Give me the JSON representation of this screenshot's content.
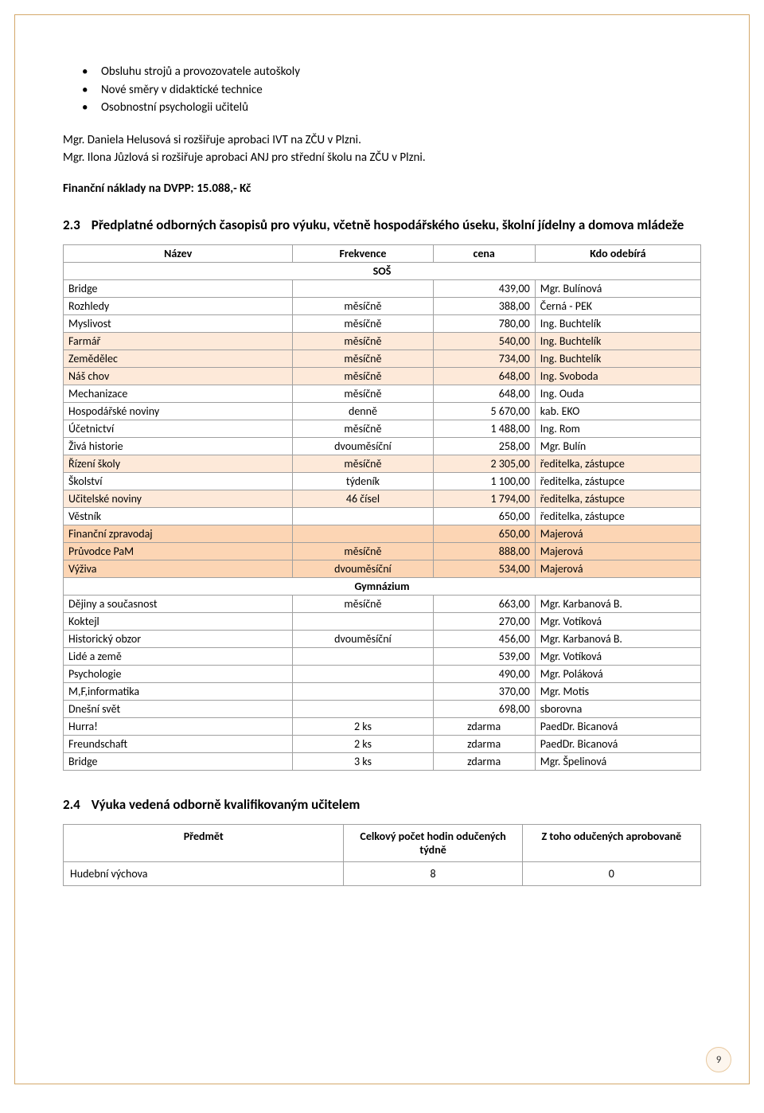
{
  "bullets": {
    "b1": "Obsluhu strojů a provozovatele autoškoly",
    "b2": "Nové směry v didaktické technice",
    "b3": "Osobnostní psychologii učitelů"
  },
  "para1": "Mgr. Daniela Helusová si rozšiřuje aprobaci IVT na ZČU v Plzni.",
  "para2": "Mgr. Ilona Jůzlová si rozšiřuje aprobaci ANJ pro střední školu na ZČU v Plzni.",
  "fin_label": "Finanční náklady na DVPP: 15.088,- Kč",
  "sec23": {
    "num": "2.3",
    "title": "Předplatné odborných časopisů pro výuku, včetně hospodářského úseku, školní jídelny a domova mládeže"
  },
  "t1_header": {
    "c1": "Název",
    "c2": "Frekvence",
    "c3": "cena",
    "c4": "Kdo odebírá"
  },
  "t1_sub1": "SOŠ",
  "t1_sub2": "Gymnázium",
  "t1_rows_sos": [
    {
      "name": "Bridge",
      "freq": "",
      "cena": "439,00",
      "kdo": "Mgr. Bulínová"
    },
    {
      "name": "Rozhledy",
      "freq": "měsíčně",
      "cena": "388,00",
      "kdo": "Černá - PEK"
    },
    {
      "name": "Myslivost",
      "freq": "měsíčně",
      "cena": "780,00",
      "kdo": "Ing. Buchtelík"
    },
    {
      "name": "Farmář",
      "freq": "měsíčně",
      "cena": "540,00",
      "kdo": "Ing. Buchtelík"
    },
    {
      "name": "Zemědělec",
      "freq": "měsíčně",
      "cena": "734,00",
      "kdo": "Ing. Buchtelík"
    },
    {
      "name": "Náš chov",
      "freq": "měsíčně",
      "cena": "648,00",
      "kdo": "Ing. Svoboda"
    },
    {
      "name": "Mechanizace",
      "freq": "měsíčně",
      "cena": "648,00",
      "kdo": "Ing. Ouda"
    },
    {
      "name": "Hospodářské noviny",
      "freq": "denně",
      "cena": "5 670,00",
      "kdo": "kab. EKO"
    },
    {
      "name": "Účetnictví",
      "freq": "měsíčně",
      "cena": "1 488,00",
      "kdo": "Ing. Rom"
    },
    {
      "name": "Živá historie",
      "freq": "dvouměsíční",
      "cena": "258,00",
      "kdo": "Mgr. Bulín"
    },
    {
      "name": "Řízení školy",
      "freq": "měsíčně",
      "cena": "2 305,00",
      "kdo": "ředitelka, zástupce"
    },
    {
      "name": "Školství",
      "freq": "týdeník",
      "cena": "1 100,00",
      "kdo": "ředitelka, zástupce"
    },
    {
      "name": "Učitelské noviny",
      "freq": "46 čísel",
      "cena": "1 794,00",
      "kdo": "ředitelka, zástupce"
    },
    {
      "name": "Věstník",
      "freq": "",
      "cena": "650,00",
      "kdo": "ředitelka, zástupce"
    },
    {
      "name": "Finanční zpravodaj",
      "freq": "",
      "cena": "650,00",
      "kdo": "Majerová"
    },
    {
      "name": "Průvodce PaM",
      "freq": "měsíčně",
      "cena": "888,00",
      "kdo": "Majerová"
    },
    {
      "name": "Výživa",
      "freq": "dvouměsíční",
      "cena": "534,00",
      "kdo": "Majerová"
    }
  ],
  "t1_rows_gym": [
    {
      "name": "Dějiny a současnost",
      "freq": "měsíčně",
      "cena": "663,00",
      "kdo": "Mgr. Karbanová B."
    },
    {
      "name": "Koktejl",
      "freq": "",
      "cena": "270,00",
      "kdo": "Mgr. Votíková"
    },
    {
      "name": "Historický obzor",
      "freq": "dvouměsíční",
      "cena": "456,00",
      "kdo": "Mgr. Karbanová B."
    },
    {
      "name": "Lidé a země",
      "freq": "",
      "cena": "539,00",
      "kdo": "Mgr. Votíková"
    },
    {
      "name": "Psychologie",
      "freq": "",
      "cena": "490,00",
      "kdo": "Mgr. Poláková"
    },
    {
      "name": "M,F,informatika",
      "freq": "",
      "cena": "370,00",
      "kdo": "Mgr. Motis"
    },
    {
      "name": "Dnešní svět",
      "freq": "",
      "cena": "698,00",
      "kdo": "sborovna"
    },
    {
      "name": "Hurra!",
      "freq": "2 ks",
      "cena": "zdarma",
      "kdo": "PaedDr. Bicanová"
    },
    {
      "name": "Freundschaft",
      "freq": "2 ks",
      "cena": "zdarma",
      "kdo": "PaedDr. Bicanová"
    },
    {
      "name": "Bridge",
      "freq": "3 ks",
      "cena": "zdarma",
      "kdo": "Mgr. Špelinová"
    }
  ],
  "sec24": {
    "num": "2.4",
    "title": "Výuka vedená odborně kvalifikovaným učitelem"
  },
  "t2_header": {
    "c1": "Předmět",
    "c2": "Celkový počet hodin odučených týdně",
    "c3": "Z toho odučených aprobovaně"
  },
  "t2_rows": [
    {
      "name": "Hudební výchova",
      "hod": "8",
      "apr": "0"
    }
  ],
  "page_number": "9",
  "highlight_sos": [
    3,
    4,
    5,
    10,
    12,
    14,
    15,
    16
  ],
  "highlight_gym": [],
  "colwidths": {
    "c1": "36%",
    "c2": "22%",
    "c3": "16%",
    "c4": "26%"
  }
}
